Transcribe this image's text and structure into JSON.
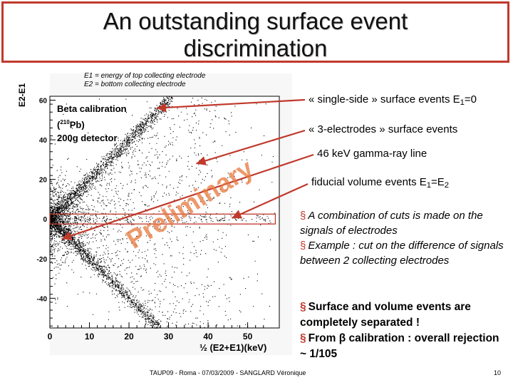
{
  "slide": {
    "title_line1": "An outstanding surface event",
    "title_line2": "discrimination",
    "footer": "TAUP09 - Roma - 07/03/2009 - SANGLARD Véronique",
    "page_number": "10",
    "accent_color": "#c0392b"
  },
  "plot": {
    "legend_line1": "E1 = energy of top collecting electrode",
    "legend_line2": "E2 = bottom collecting electrode",
    "calib_line1": "Beta calibration",
    "calib_line2a": "(",
    "calib_sup": "210",
    "calib_line2b": "Pb)",
    "calib_line3": "200g detector",
    "watermark": "Preliminary",
    "watermark_color": "#e8783c"
  },
  "annotations": {
    "single_side": "« single-side » surface events E",
    "single_side_sub": "1",
    "single_side_tail": "=0",
    "three_electrodes": "« 3-electrodes » surface events",
    "gamma_line": "46 keV gamma-ray line",
    "fiducial": "fiducial volume events E",
    "fiducial_sub1": "1",
    "fiducial_mid": "=E",
    "fiducial_sub2": "2",
    "bullet1": "A combination of cuts is made on the signals of electrodes",
    "bullet2": "Example : cut on the difference of signals between 2 collecting electrodes",
    "bold1": "Surface and volume events are completely separated !",
    "bold2a": "From ",
    "bold2_beta": "β",
    "bold2b": " calibration : overall rejection ~ 1/105"
  },
  "chart_data": {
    "type": "scatter",
    "title": "",
    "xlabel": "½ (E2+E1)(keV)",
    "ylabel": "E2-E1",
    "xlim": [
      0,
      58
    ],
    "ylim": [
      -55,
      62
    ],
    "x_ticks": [
      0,
      10,
      20,
      30,
      40,
      50
    ],
    "y_ticks": [
      -40,
      -20,
      0,
      20,
      40,
      60
    ],
    "grid": false,
    "point_color": "#000000",
    "event_bands": [
      {
        "relation": "E2-E1 = 2·x (E1=0)",
        "x_range": [
          0,
          30
        ],
        "visual_density": "high"
      },
      {
        "relation": "E2-E1 = -2·x (E2=0)",
        "x_range": [
          0,
          28
        ],
        "visual_density": "high"
      },
      {
        "relation": "E2-E1 ≈ 0 (E1=E2)",
        "x_range": [
          0,
          57
        ],
        "visual_density": "low"
      },
      {
        "relation": "E2-E1 ≈ ±x (3-electrodes)",
        "x_range": [
          0,
          45
        ],
        "visual_density": "medium"
      }
    ],
    "marked_energy_keV": 46,
    "cut_box": {
      "x_range": [
        0,
        57
      ],
      "y_range": [
        -2.5,
        2.5
      ]
    }
  }
}
